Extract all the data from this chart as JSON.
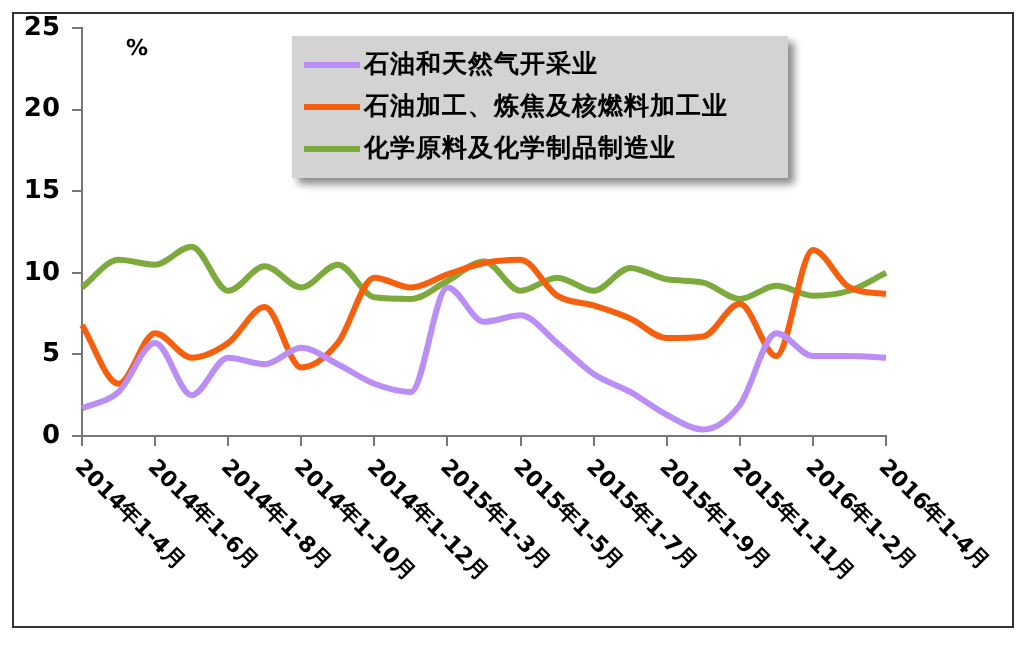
{
  "chart_data": {
    "type": "line",
    "ylabel": "%",
    "categories": [
      "2014年1-4月",
      null,
      "2014年1-6月",
      null,
      "2014年1-8月",
      null,
      "2014年1-10月",
      null,
      "2014年1-12月",
      null,
      "2015年1-3月",
      null,
      "2015年1-5月",
      null,
      "2015年1-7月",
      null,
      "2015年1-9月",
      null,
      "2015年1-11月",
      null,
      "2016年1-2月",
      null,
      "2016年1-4月"
    ],
    "series": [
      {
        "name": "石油和天然气开采业",
        "color": "#bb8ef5",
        "values": [
          1.7,
          2.7,
          5.7,
          2.5,
          4.8,
          4.4,
          5.4,
          4.4,
          3.2,
          2.7,
          9.1,
          7.0,
          7.4,
          5.7,
          3.8,
          2.7,
          1.3,
          0.4,
          1.9,
          6.3,
          4.9,
          4.9,
          4.8
        ]
      },
      {
        "name": "石油加工、炼焦及核燃料加工业",
        "color": "#f5600f",
        "values": [
          6.8,
          3.2,
          6.3,
          4.8,
          5.7,
          7.9,
          4.2,
          5.7,
          9.7,
          9.1,
          9.9,
          10.6,
          10.8,
          8.6,
          8.0,
          7.2,
          6.0,
          6.1,
          8.1,
          4.9,
          11.4,
          9.1,
          8.7
        ]
      },
      {
        "name": "化学原料及化学制品制造业",
        "color": "#7daa3c",
        "values": [
          9.1,
          10.8,
          10.5,
          11.6,
          8.9,
          10.4,
          9.1,
          10.5,
          8.5,
          8.4,
          9.5,
          10.7,
          8.9,
          9.7,
          8.9,
          10.3,
          9.6,
          9.4,
          8.4,
          9.2,
          8.6,
          8.9,
          10.0
        ]
      }
    ],
    "ylim": [
      0,
      25
    ],
    "yticks": [
      0,
      5,
      10,
      15,
      20,
      25
    ],
    "grid": false,
    "legend": "top",
    "marker": "none",
    "line_style": "solid"
  }
}
